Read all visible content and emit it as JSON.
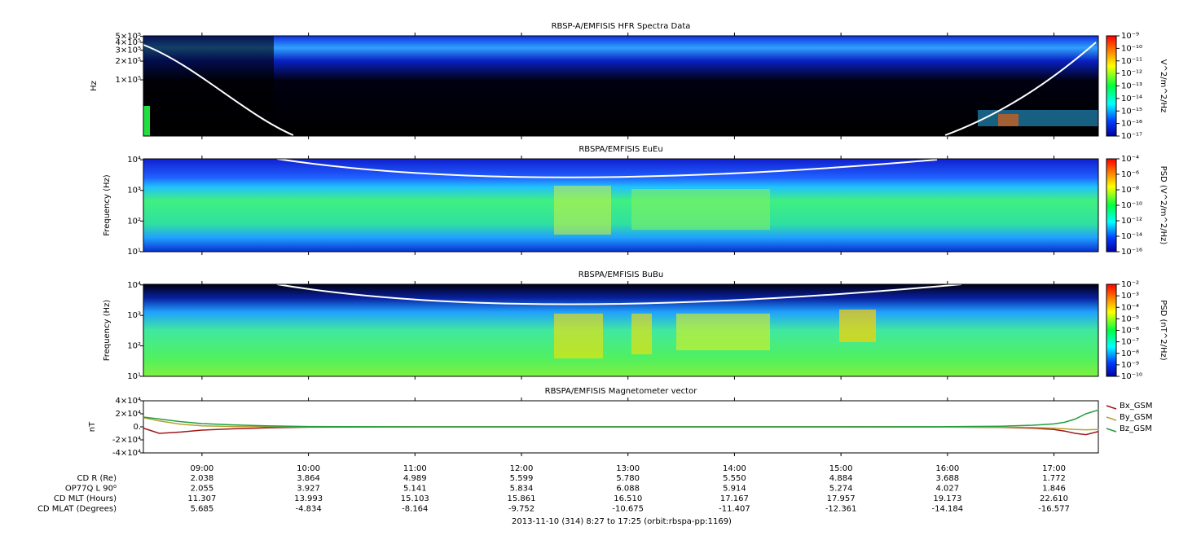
{
  "chart_data": [
    {
      "type": "spectrogram",
      "title": "RBSP-A/EMFISIS  HFR Spectra Data",
      "y_label": "Hz",
      "log_y": true,
      "ylim": [
        12500,
        510000
      ],
      "yticks": [
        {
          "value": 100000,
          "label": "1×10⁵"
        },
        {
          "value": 200000,
          "label": "2×10⁵"
        },
        {
          "value": 300000,
          "label": "3×10⁵"
        },
        {
          "value": 400000,
          "label": "4×10⁵"
        },
        {
          "value": 500000,
          "label": "5×10⁵"
        }
      ],
      "colorbar": {
        "label": "V^2/m^2/Hz",
        "lim": [
          1e-17,
          1e-09
        ],
        "ticks": [
          {
            "value": 1e-09,
            "label": "10⁻⁹"
          },
          {
            "value": 1e-10,
            "label": "10⁻¹⁰"
          },
          {
            "value": 1e-11,
            "label": "10⁻¹¹"
          },
          {
            "value": 1e-12,
            "label": "10⁻¹²"
          },
          {
            "value": 1e-13,
            "label": "10⁻¹³"
          },
          {
            "value": 1e-14,
            "label": "10⁻¹⁴"
          },
          {
            "value": 1e-15,
            "label": "10⁻¹⁵"
          },
          {
            "value": 1e-16,
            "label": "10⁻¹⁶"
          },
          {
            "value": 1e-17,
            "label": "10⁻¹⁷"
          }
        ]
      }
    },
    {
      "type": "spectrogram",
      "title": "RBSPA/EMFISIS  EuEu",
      "y_label": "Frequency (Hz)",
      "log_y": true,
      "ylim": [
        10,
        10700
      ],
      "yticks": [
        {
          "value": 10,
          "label": "10¹"
        },
        {
          "value": 100,
          "label": "10²"
        },
        {
          "value": 1000,
          "label": "10³"
        },
        {
          "value": 10000,
          "label": "10⁴"
        }
      ],
      "colorbar": {
        "label": "PSD (V^2/m^2/Hz)",
        "lim": [
          1e-16,
          0.0001
        ],
        "ticks": [
          {
            "value": 0.0001,
            "label": "10⁻⁴"
          },
          {
            "value": 1e-06,
            "label": "10⁻⁶"
          },
          {
            "value": 1e-08,
            "label": "10⁻⁸"
          },
          {
            "value": 1e-10,
            "label": "10⁻¹⁰"
          },
          {
            "value": 1e-12,
            "label": "10⁻¹²"
          },
          {
            "value": 1e-14,
            "label": "10⁻¹⁴"
          },
          {
            "value": 1e-16,
            "label": "10⁻¹⁶"
          }
        ]
      }
    },
    {
      "type": "spectrogram",
      "title": "RBSPA/EMFISIS  BuBu",
      "y_label": "Frequency (Hz)",
      "log_y": true,
      "ylim": [
        10,
        10500
      ],
      "yticks": [
        {
          "value": 10,
          "label": "10¹"
        },
        {
          "value": 100,
          "label": "10²"
        },
        {
          "value": 1000,
          "label": "10³"
        },
        {
          "value": 10000,
          "label": "10⁴"
        }
      ],
      "colorbar": {
        "label": "PSD (nT^2/Hz)",
        "lim": [
          1e-10,
          0.01
        ],
        "ticks": [
          {
            "value": 0.01,
            "label": "10⁻²"
          },
          {
            "value": 0.001,
            "label": "10⁻³"
          },
          {
            "value": 0.0001,
            "label": "10⁻⁴"
          },
          {
            "value": 1e-05,
            "label": "10⁻⁵"
          },
          {
            "value": 1e-06,
            "label": "10⁻⁶"
          },
          {
            "value": 1e-07,
            "label": "10⁻⁷"
          },
          {
            "value": 1e-08,
            "label": "10⁻⁸"
          },
          {
            "value": 1e-09,
            "label": "10⁻⁹"
          },
          {
            "value": 1e-10,
            "label": "10⁻¹⁰"
          }
        ]
      }
    },
    {
      "type": "line",
      "title": "RBSPA/EMFISIS  Magnetometer vector",
      "y_label": "nT",
      "legend": "right",
      "ylim": [
        -40000,
        40000
      ],
      "yticks": [
        {
          "value": 40000,
          "label": "4×10⁴"
        },
        {
          "value": 20000,
          "label": "2×10⁴"
        },
        {
          "value": 0,
          "label": "0."
        },
        {
          "value": -20000,
          "label": "-2×10⁴"
        },
        {
          "value": -40000,
          "label": "-4×10⁴"
        }
      ],
      "x": [
        8.45,
        8.6,
        8.8,
        9.0,
        9.3,
        9.6,
        10.0,
        11,
        12,
        13,
        14,
        15,
        16,
        16.5,
        16.8,
        17.0,
        17.1,
        17.2,
        17.3,
        17.42
      ],
      "series": [
        {
          "name": "Bx_GSM",
          "color": "#a01818",
          "values": [
            -2000,
            -10000,
            -8000,
            -5000,
            -3000,
            -1500,
            -500,
            0,
            0,
            0,
            0,
            0,
            -300,
            -800,
            -2000,
            -4000,
            -6500,
            -10000,
            -12000,
            -7000
          ]
        },
        {
          "name": "By_GSM",
          "color": "#b8a030",
          "values": [
            14000,
            9000,
            4000,
            1500,
            500,
            200,
            0,
            0,
            0,
            0,
            0,
            0,
            -200,
            -500,
            -1000,
            -2000,
            -3000,
            -4000,
            -4500,
            -4000
          ]
        },
        {
          "name": "Bz_GSM",
          "color": "#20a040",
          "values": [
            15000,
            12000,
            8000,
            5000,
            3000,
            1500,
            500,
            0,
            0,
            0,
            0,
            0,
            300,
            1000,
            2500,
            4500,
            7000,
            12000,
            20000,
            26000
          ]
        }
      ]
    }
  ],
  "time_axis": {
    "xlim": [
      8.45,
      17.4167
    ],
    "xticks": [
      {
        "value": 9,
        "label": "09:00"
      },
      {
        "value": 10,
        "label": "10:00"
      },
      {
        "value": 11,
        "label": "11:00"
      },
      {
        "value": 12,
        "label": "12:00"
      },
      {
        "value": 13,
        "label": "13:00"
      },
      {
        "value": 14,
        "label": "14:00"
      },
      {
        "value": 15,
        "label": "15:00"
      },
      {
        "value": 16,
        "label": "16:00"
      },
      {
        "value": 17,
        "label": "17:00"
      }
    ]
  },
  "ephemeris": {
    "rows": [
      {
        "label": "CD R (Re)",
        "values": [
          "2.038",
          "3.864",
          "4.989",
          "5.599",
          "5.780",
          "5.550",
          "4.884",
          "3.688",
          "1.772"
        ]
      },
      {
        "label": "OP77Q L 90⁰",
        "values": [
          "2.055",
          "3.927",
          "5.141",
          "5.834",
          "6.088",
          "5.914",
          "5.274",
          "4.027",
          "1.846"
        ]
      },
      {
        "label": "CD MLT (Hours)",
        "values": [
          "11.307",
          "13.993",
          "15.103",
          "15.861",
          "16.510",
          "17.167",
          "17.957",
          "19.173",
          "22.610"
        ]
      },
      {
        "label": "CD MLAT (Degrees)",
        "values": [
          "5.685",
          "-4.834",
          "-8.164",
          "-9.752",
          "-10.675",
          "-11.407",
          "-12.361",
          "-14.184",
          "-16.577"
        ]
      }
    ]
  },
  "footer": "2013-11-10 (314) 8:27 to 17:25 (orbit:rbspa-pp:1169)"
}
